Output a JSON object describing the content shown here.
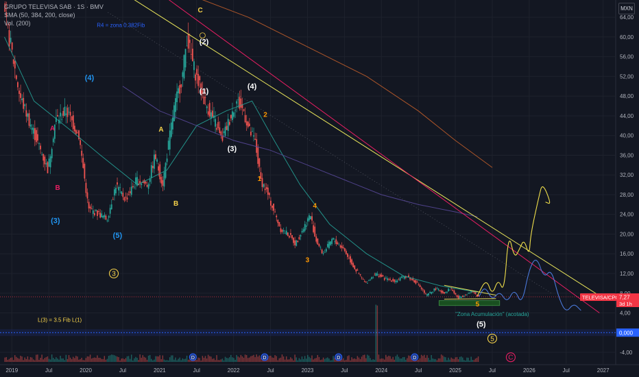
{
  "chart_data": {
    "type": "line",
    "title": "GRUPO TELEVISA SAB · 1S · BMV",
    "indicators": [
      "SMA (50, 384, 200, close)",
      "Vol. (200)"
    ],
    "currency": "MXN",
    "ylim": [
      -6.5,
      67.5
    ],
    "y_ticks": [
      "-4,00",
      "0,000",
      "4,00",
      "8,00",
      "12,00",
      "16,00",
      "20,00",
      "24,00",
      "28,00",
      "32,00",
      "36,00",
      "40,00",
      "44,00",
      "48,00",
      "52,00",
      "56,00",
      "60,00",
      "64,00"
    ],
    "x_ticks": [
      "2019",
      "Jul",
      "2020",
      "Jul",
      "2021",
      "Jul",
      "2022",
      "Jul",
      "2023",
      "Jul",
      "2024",
      "Jul",
      "2025",
      "Jul",
      "2026",
      "Jul",
      "2027"
    ],
    "price_series": {
      "name": "TELEVISA/CPO",
      "x": [
        2018.9,
        2019.0,
        2019.12,
        2019.3,
        2019.5,
        2019.6,
        2019.75,
        2019.92,
        2020.05,
        2020.2,
        2020.3,
        2020.42,
        2020.55,
        2020.7,
        2020.85,
        2020.95,
        2021.05,
        2021.2,
        2021.32,
        2021.38,
        2021.47,
        2021.55,
        2021.65,
        2021.78,
        2021.85,
        2021.95,
        2022.05,
        2022.15,
        2022.22,
        2022.3,
        2022.38,
        2022.45,
        2022.55,
        2022.65,
        2022.75,
        2022.85,
        2022.95,
        2023.05,
        2023.12,
        2023.22,
        2023.35,
        2023.5,
        2023.65,
        2023.8,
        2023.93,
        2024.05,
        2024.2,
        2024.35,
        2024.5,
        2024.62,
        2024.75,
        2024.85,
        2024.95,
        2025.05,
        2025.15,
        2025.25,
        2025.32
      ],
      "y": [
        65,
        58,
        48,
        41,
        33,
        43,
        45,
        40,
        25,
        24,
        23,
        30,
        27,
        31,
        30,
        36,
        30,
        45,
        52,
        60,
        54,
        50,
        46,
        42,
        39,
        43,
        47,
        45,
        41,
        39,
        31,
        29,
        25,
        21,
        20,
        18,
        21,
        24,
        19,
        16,
        19,
        17,
        13,
        10,
        12,
        11,
        10.5,
        11.5,
        10,
        7.5,
        9,
        8,
        9,
        7,
        7.8,
        8.3,
        7.27
      ]
    },
    "moving_averages": [
      {
        "x": [
          2018.9,
          2019.3,
          2019.8,
          2020.2,
          2020.7,
          2021.1,
          2021.5,
          2021.9,
          2022.25,
          2022.55,
          2022.9,
          2023.3,
          2023.8,
          2024.3,
          2024.8,
          2025.3
        ],
        "y": [
          60,
          47,
          41,
          36,
          30,
          33,
          42,
          45,
          47,
          39,
          30,
          22,
          16,
          11.5,
          9.5,
          8.2
        ]
      },
      {
        "x": [
          2020.5,
          2021.0,
          2021.5,
          2022.0,
          2022.5,
          2023.0,
          2023.5,
          2024.0,
          2024.5,
          2025.0,
          2025.3
        ],
        "y": [
          50,
          45,
          42,
          39,
          37,
          34,
          31,
          28,
          26,
          24.5,
          23.5
        ]
      },
      {
        "x": [
          2020.9,
          2021.5,
          2022.2,
          2023.0,
          2023.8,
          2024.5,
          2025.0,
          2025.5
        ],
        "y": [
          72,
          68,
          64,
          58,
          52,
          45,
          39,
          33.5
        ]
      }
    ],
    "trendlines": [
      {
        "name": "yellow-trendline",
        "x": [
          2020.4,
          2026.95
        ],
        "y": [
          70,
          7.5
        ]
      },
      {
        "name": "magenta-trendline",
        "x": [
          2020.9,
          2026.95
        ],
        "y": [
          70,
          4.0
        ]
      }
    ],
    "projections": [
      {
        "name": "yellow-projection",
        "x": [
          2025.3,
          2025.42,
          2025.5,
          2025.58,
          2025.66,
          2025.72,
          2025.8,
          2025.87,
          2025.93,
          2026.0,
          2026.02,
          2026.13,
          2026.18,
          2026.3,
          2026.22
        ],
        "y": [
          7.5,
          11,
          7.5,
          11,
          8,
          20.5,
          15,
          17,
          19,
          15.5,
          20,
          27.5,
          30.5,
          26,
          26.5
        ]
      },
      {
        "name": "blue-projection",
        "x": [
          2025.32,
          2025.4,
          2025.5,
          2025.6,
          2025.7,
          2025.8,
          2025.9,
          2026.0,
          2026.1,
          2026.2,
          2026.3,
          2026.4,
          2026.5,
          2026.6,
          2026.7
        ],
        "y": [
          7.3,
          9.5,
          6.5,
          8.5,
          6,
          9,
          5.5,
          13,
          15.5,
          11,
          13,
          7,
          4,
          6,
          4.5
        ]
      }
    ],
    "annotations": [
      {
        "text": "R4 = zona 0.382Fib",
        "x": 2020.15,
        "y": 62,
        "color": "#2962ff"
      },
      {
        "text": "L(3) = 3.5 Fib L(1)",
        "x": 2019.35,
        "y": 2.2,
        "color": "#f7d34a"
      },
      {
        "text": "\"Zona Acumulación\" (acotada)",
        "x": 2025.0,
        "y": 3.4,
        "color": "#26a69a"
      },
      {
        "text": "C",
        "x": 2021.55,
        "y": 65,
        "color": "#f7d34a"
      },
      {
        "text": "(2)",
        "x": 2021.6,
        "y": 58.5,
        "color": "#ffffff"
      },
      {
        "text": "(1)",
        "x": 2021.6,
        "y": 48.5,
        "color": "#ffffff"
      },
      {
        "text": "(4)",
        "x": 2022.25,
        "y": 49.5,
        "color": "#ffffff"
      },
      {
        "text": "(3)",
        "x": 2021.98,
        "y": 36.8,
        "color": "#ffffff"
      },
      {
        "text": "(5)",
        "x": 2025.35,
        "y": 1.2,
        "color": "#ffffff"
      },
      {
        "text": "(4)",
        "x": 2020.05,
        "y": 51.2,
        "color": "#2196f3"
      },
      {
        "text": "(3)",
        "x": 2019.59,
        "y": 22.2,
        "color": "#2196f3"
      },
      {
        "text": "(5)",
        "x": 2020.43,
        "y": 19.2,
        "color": "#2196f3"
      },
      {
        "text": "A",
        "x": 2021.02,
        "y": 40.8,
        "color": "#f7d34a"
      },
      {
        "text": "B",
        "x": 2021.22,
        "y": 25.8,
        "color": "#f7d34a"
      },
      {
        "text": "2",
        "x": 2022.43,
        "y": 43.8,
        "color": "#ff9800"
      },
      {
        "text": "1",
        "x": 2022.35,
        "y": 30.8,
        "color": "#ff9800"
      },
      {
        "text": "4",
        "x": 2023.1,
        "y": 25.3,
        "color": "#ff9800"
      },
      {
        "text": "3",
        "x": 2023.0,
        "y": 14.3,
        "color": "#ff9800"
      },
      {
        "text": "5",
        "x": 2025.3,
        "y": 5.3,
        "color": "#ff9800"
      },
      {
        "text": "A",
        "x": 2019.55,
        "y": 41.0,
        "color": "#e91e63"
      },
      {
        "text": "B",
        "x": 2019.62,
        "y": 29.0,
        "color": "#e91e63"
      }
    ],
    "circled_labels": [
      {
        "text": "3",
        "x": 2020.38,
        "y": 12.0,
        "color": "#f7d34a"
      },
      {
        "text": "5",
        "x": 2025.5,
        "y": -1.2,
        "color": "#f7d34a"
      },
      {
        "text": "C",
        "x": 2025.75,
        "y": -5.0,
        "color": "#e91e63"
      }
    ],
    "price_labels": [
      {
        "text": "TELEVISA/CPO",
        "value": "7,27",
        "countdown": "3d 1h",
        "color": "#f23645"
      },
      {
        "text": "",
        "value": "0,000",
        "color": "#2962ff"
      }
    ],
    "volume_markers": [
      2021.45,
      2022.42,
      2023.42,
      2024.45
    ]
  }
}
